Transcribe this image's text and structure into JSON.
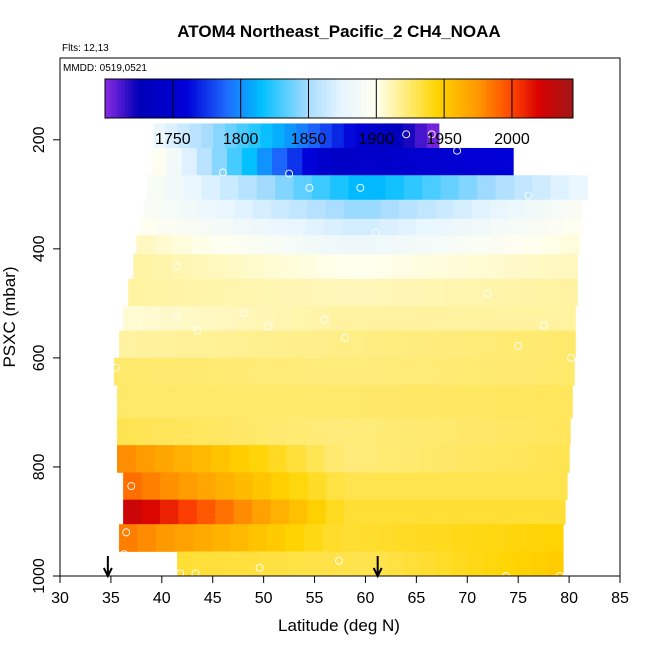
{
  "chart_data": {
    "type": "heatmap",
    "title": "ATOM4 Northeast_Pacific_2 CH4_NOAA",
    "flights_text": "Flts: 12,13",
    "mmdd_text": "MMDD: 0519,0521",
    "xlabel": "Latitude (deg N)",
    "ylabel": "PSXC (mbar)",
    "xlim": [
      30,
      85
    ],
    "ylim": [
      1000,
      50
    ],
    "x_ticks": [
      "30",
      "35",
      "40",
      "45",
      "50",
      "55",
      "60",
      "65",
      "70",
      "75",
      "80",
      "85"
    ],
    "y_ticks": [
      "200",
      "400",
      "600",
      "800",
      "1000"
    ],
    "colorbar": {
      "range": [
        1700,
        2045
      ],
      "tick_values": [
        "1750",
        "1800",
        "1850",
        "1900",
        "1950",
        "2000"
      ],
      "stops": [
        [
          1700,
          "#8a2be2"
        ],
        [
          1725,
          "#0000b8"
        ],
        [
          1760,
          "#0000d8"
        ],
        [
          1790,
          "#1e6cff"
        ],
        [
          1815,
          "#00bfff"
        ],
        [
          1850,
          "#a8dcff"
        ],
        [
          1875,
          "#e8f6ff"
        ],
        [
          1900,
          "#fffff0"
        ],
        [
          1915,
          "#fff3a0"
        ],
        [
          1945,
          "#ffd400"
        ],
        [
          1975,
          "#ff9800"
        ],
        [
          2000,
          "#ff4500"
        ],
        [
          2020,
          "#d80000"
        ],
        [
          2045,
          "#a01818"
        ]
      ]
    },
    "layers": [
      {
        "p_top": 170,
        "p_bot": 215,
        "x_start": 39.2,
        "x_end": 67.2,
        "v_left": 1880,
        "v_right": 1700,
        "v_mid": 1800
      },
      {
        "p_top": 215,
        "p_bot": 265,
        "x_start": 39.0,
        "x_end": 74.5,
        "v_left": 1905,
        "v_right": 1760,
        "v_mid": 1740
      },
      {
        "p_top": 265,
        "p_bot": 310,
        "x_start": 38.5,
        "x_end": 81.8,
        "v_left": 1895,
        "v_right": 1880,
        "v_mid": 1810
      },
      {
        "p_top": 310,
        "p_bot": 345,
        "x_start": 38.2,
        "x_end": 81.2,
        "v_left": 1895,
        "v_right": 1895,
        "v_mid": 1845
      },
      {
        "p_top": 345,
        "p_bot": 375,
        "x_start": 37.8,
        "x_end": 81.3,
        "v_left": 1900,
        "v_right": 1900,
        "v_mid": 1865
      },
      {
        "p_top": 375,
        "p_bot": 410,
        "x_start": 37.5,
        "x_end": 81.0,
        "v_left": 1910,
        "v_right": 1905,
        "v_mid": 1880
      },
      {
        "p_top": 410,
        "p_bot": 455,
        "x_start": 37.2,
        "x_end": 80.8,
        "v_left": 1915,
        "v_right": 1910,
        "v_mid": 1900
      },
      {
        "p_top": 455,
        "p_bot": 505,
        "x_start": 36.7,
        "x_end": 80.8,
        "v_left": 1915,
        "v_right": 1915,
        "v_mid": 1910
      },
      {
        "p_top": 505,
        "p_bot": 550,
        "x_start": 36.2,
        "x_end": 80.6,
        "v_left": 1905,
        "v_right": 1915,
        "v_mid": 1915
      },
      {
        "p_top": 550,
        "p_bot": 600,
        "x_start": 35.8,
        "x_end": 80.6,
        "v_left": 1915,
        "v_right": 1925,
        "v_mid": 1920
      },
      {
        "p_top": 600,
        "p_bot": 650,
        "x_start": 35.3,
        "x_end": 80.5,
        "v_left": 1925,
        "v_right": 1925,
        "v_mid": 1922
      },
      {
        "p_top": 650,
        "p_bot": 710,
        "x_start": 35.6,
        "x_end": 80.3,
        "v_left": 1925,
        "v_right": 1928,
        "v_mid": 1925
      },
      {
        "p_top": 710,
        "p_bot": 760,
        "x_start": 35.6,
        "x_end": 80.1,
        "v_left": 1930,
        "v_right": 1928,
        "v_mid": 1922
      },
      {
        "p_top": 760,
        "p_bot": 810,
        "x_start": 35.6,
        "x_end": 80.0,
        "v_left": 1980,
        "v_right": 1930,
        "v_mid": 1922
      },
      {
        "p_top": 810,
        "p_bot": 860,
        "x_start": 36.2,
        "x_end": 79.8,
        "v_left": 1990,
        "v_right": 1930,
        "v_mid": 1930
      },
      {
        "p_top": 860,
        "p_bot": 905,
        "x_start": 36.2,
        "x_end": 79.6,
        "v_left": 2030,
        "v_right": 1935,
        "v_mid": 1935
      },
      {
        "p_top": 905,
        "p_bot": 955,
        "x_start": 35.8,
        "x_end": 79.4,
        "v_left": 1985,
        "v_right": 1945,
        "v_mid": 1935
      },
      {
        "p_top": 955,
        "p_bot": 1000,
        "x_start": 41.5,
        "x_end": 79.4,
        "v_left": 1935,
        "v_right": 1950,
        "v_mid": 1930
      }
    ],
    "points": [
      [
        40.0,
        195
      ],
      [
        64.0,
        190
      ],
      [
        66.5,
        190
      ],
      [
        69.0,
        220
      ],
      [
        46.0,
        260
      ],
      [
        52.5,
        262
      ],
      [
        54.5,
        288
      ],
      [
        59.5,
        288
      ],
      [
        76.0,
        302
      ],
      [
        61.0,
        370
      ],
      [
        41.5,
        432
      ],
      [
        72.0,
        482
      ],
      [
        48.0,
        518
      ],
      [
        41.5,
        525
      ],
      [
        50.5,
        542
      ],
      [
        56.0,
        530
      ],
      [
        43.5,
        550
      ],
      [
        58.0,
        563
      ],
      [
        77.5,
        540
      ],
      [
        75.0,
        578
      ],
      [
        80.2,
        600
      ],
      [
        35.5,
        618
      ],
      [
        37.0,
        835
      ],
      [
        36.5,
        920
      ],
      [
        36.3,
        960
      ],
      [
        41.8,
        995
      ],
      [
        43.3,
        995
      ],
      [
        49.6,
        985
      ],
      [
        57.4,
        972
      ],
      [
        73.8,
        1000
      ],
      [
        79.1,
        1000
      ]
    ],
    "flight_arrows_x": [
      34.7,
      61.2
    ]
  }
}
